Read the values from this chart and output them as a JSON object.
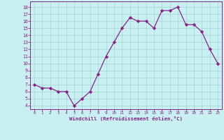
{
  "x": [
    0,
    1,
    2,
    3,
    4,
    5,
    6,
    7,
    8,
    9,
    10,
    11,
    12,
    13,
    14,
    15,
    16,
    17,
    18,
    19,
    20,
    21,
    22,
    23
  ],
  "y": [
    7.0,
    6.5,
    6.5,
    6.0,
    6.0,
    4.0,
    5.0,
    6.0,
    8.5,
    11.0,
    13.0,
    15.0,
    16.5,
    16.0,
    16.0,
    15.0,
    17.5,
    17.5,
    18.0,
    15.5,
    15.5,
    14.5,
    12.0,
    10.0
  ],
  "line_color": "#882288",
  "marker": "D",
  "marker_size": 2.2,
  "bg_color": "#c8f0f0",
  "grid_color": "#a8d8d8",
  "xlabel": "Windchill (Refroidissement éolien,°C)",
  "ylim": [
    3.5,
    18.8
  ],
  "xlim": [
    -0.5,
    23.5
  ],
  "yticks": [
    4,
    5,
    6,
    7,
    8,
    9,
    10,
    11,
    12,
    13,
    14,
    15,
    16,
    17,
    18
  ],
  "xticks": [
    0,
    1,
    2,
    3,
    4,
    5,
    6,
    7,
    8,
    9,
    10,
    11,
    12,
    13,
    14,
    15,
    16,
    17,
    18,
    19,
    20,
    21,
    22,
    23
  ],
  "tick_color": "#882288",
  "label_color": "#882288",
  "spine_color": "#882288"
}
